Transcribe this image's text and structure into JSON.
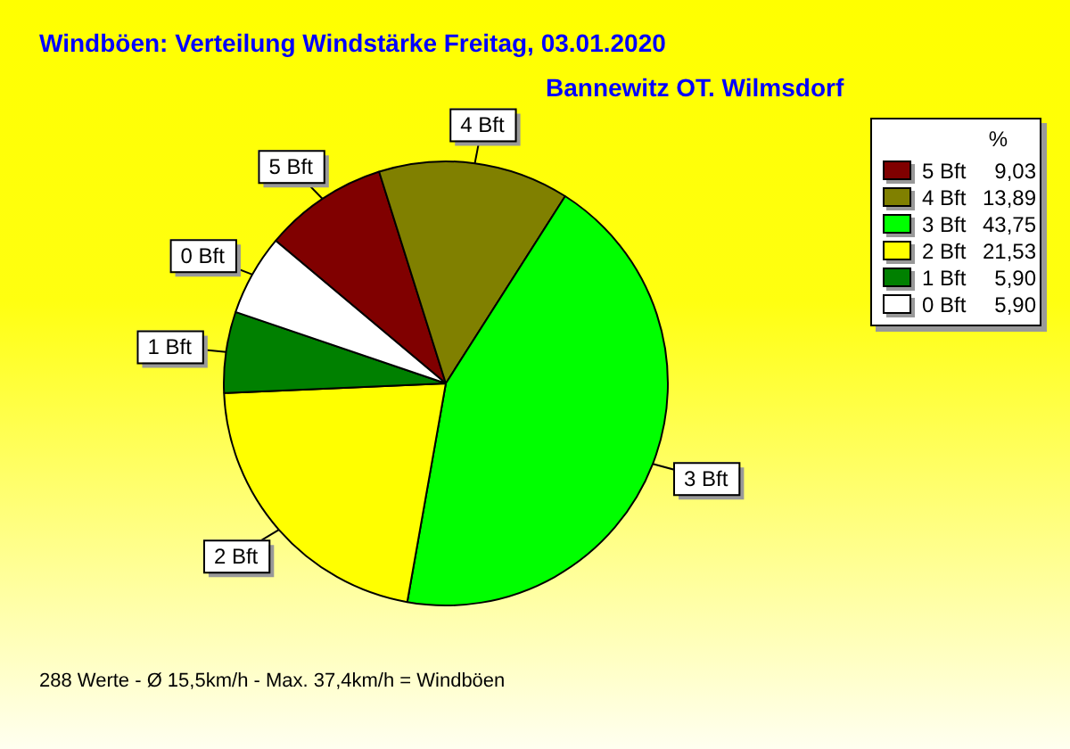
{
  "chart_data": {
    "type": "pie",
    "title": "Windböen: Verteilung Windstärke  Freitag, 03.01.2020",
    "subtitle": "Bannewitz OT. Wilmsdorf",
    "legend_title": "%",
    "categories": [
      "5 Bft",
      "4 Bft",
      "3 Bft",
      "2 Bft",
      "1 Bft",
      "0 Bft"
    ],
    "values": [
      9.03,
      13.89,
      43.75,
      21.53,
      5.9,
      5.9
    ],
    "value_labels": [
      "9,03",
      "13,89",
      "43,75",
      "21,53",
      "5,90",
      "5,90"
    ],
    "colors": [
      "#800000",
      "#808000",
      "#00ff00",
      "#ffff00",
      "#008000",
      "#ffffff"
    ],
    "legend": "top right",
    "annotations": [
      "288 Werte   -   Ø 15,5km/h  -  Max. 37,4km/h = Windböen"
    ]
  }
}
